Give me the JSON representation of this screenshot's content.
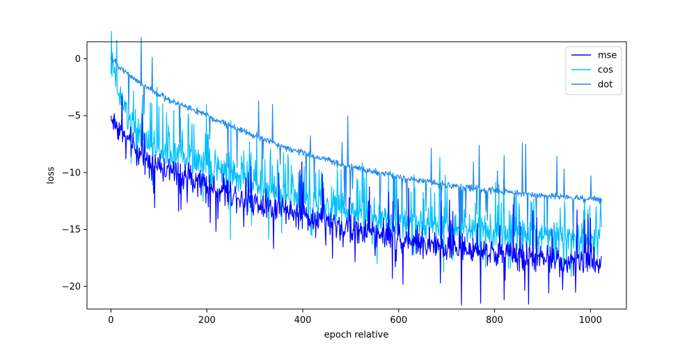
{
  "chart_data": {
    "type": "line",
    "xlabel": "epoch relative",
    "ylabel": "loss",
    "xlim": [
      -50,
      1075
    ],
    "ylim": [
      -22,
      1.5
    ],
    "xticks": [
      0,
      200,
      400,
      600,
      800,
      1000
    ],
    "yticks": [
      0,
      -5,
      -10,
      -15,
      -20
    ],
    "grid": false,
    "legend_position": "top-right",
    "n_points": 1024,
    "series": [
      {
        "name": "mse",
        "color": "#0000ff",
        "trend_points": [
          [
            0,
            -5.2
          ],
          [
            50,
            -8.0
          ],
          [
            100,
            -9.5
          ],
          [
            200,
            -11.0
          ],
          [
            300,
            -12.6
          ],
          [
            400,
            -13.8
          ],
          [
            500,
            -14.9
          ],
          [
            600,
            -15.8
          ],
          [
            700,
            -16.6
          ],
          [
            800,
            -17.1
          ],
          [
            900,
            -17.6
          ],
          [
            1023,
            -18.0
          ]
        ],
        "noise": 0.9,
        "spikes_up": 0.05,
        "spikes_down": 0.05
      },
      {
        "name": "cos",
        "color": "#00bfff",
        "trend_points": [
          [
            0,
            -0.5
          ],
          [
            20,
            -3.5
          ],
          [
            50,
            -6.5
          ],
          [
            100,
            -8.0
          ],
          [
            200,
            -9.2
          ],
          [
            300,
            -11.2
          ],
          [
            400,
            -12.6
          ],
          [
            500,
            -13.6
          ],
          [
            600,
            -14.2
          ],
          [
            700,
            -14.8
          ],
          [
            800,
            -15.3
          ],
          [
            900,
            -15.7
          ],
          [
            1023,
            -16.0
          ]
        ],
        "noise": 1.1,
        "spikes_up": 0.14,
        "spikes_down": 0.03
      },
      {
        "name": "dot",
        "color": "#1e88f0",
        "trend_points": [
          [
            0,
            0.0
          ],
          [
            50,
            -1.8
          ],
          [
            100,
            -3.2
          ],
          [
            200,
            -5.0
          ],
          [
            300,
            -6.8
          ],
          [
            400,
            -8.3
          ],
          [
            500,
            -9.5
          ],
          [
            600,
            -10.4
          ],
          [
            700,
            -11.1
          ],
          [
            800,
            -11.6
          ],
          [
            900,
            -12.0
          ],
          [
            1023,
            -12.4
          ]
        ],
        "noise": 0.22,
        "spikes_up": 0.015,
        "spikes_down": 0.04
      }
    ]
  }
}
